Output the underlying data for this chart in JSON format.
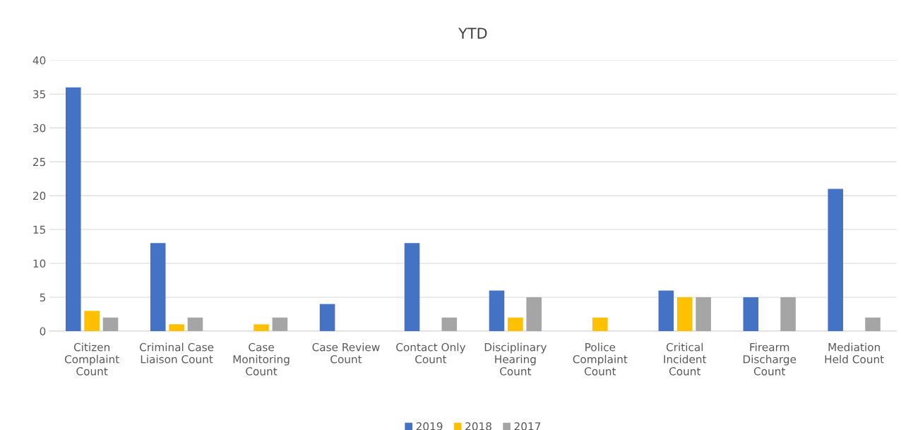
{
  "chart_data": {
    "type": "bar",
    "title": "YTD",
    "categories": [
      "Citizen\nComplaint\nCount",
      "Criminal Case\nLiaison Count",
      "Case\nMonitoring\nCount",
      "Case Review\nCount",
      "Contact Only\nCount",
      "Disciplinary\nHearing\nCount",
      "Police\nComplaint\nCount",
      "Critical\nIncident\nCount",
      "Firearm\nDischarge\nCount",
      "Mediation\nHeld Count"
    ],
    "series": [
      {
        "name": "2019",
        "color": "#4472c4",
        "values": [
          36,
          13,
          null,
          4,
          13,
          6,
          null,
          6,
          5,
          21
        ]
      },
      {
        "name": "2018",
        "color": "#ffc000",
        "values": [
          3,
          1,
          1,
          null,
          null,
          2,
          2,
          5,
          null,
          null
        ]
      },
      {
        "name": "2017",
        "color": "#a5a5a5",
        "values": [
          2,
          2,
          2,
          null,
          2,
          5,
          null,
          5,
          5,
          2
        ]
      }
    ],
    "ylim": [
      0,
      40
    ],
    "yticks": [
      0,
      5,
      10,
      15,
      20,
      25,
      30,
      35,
      40
    ],
    "grid": "y",
    "legend": "bottom"
  }
}
